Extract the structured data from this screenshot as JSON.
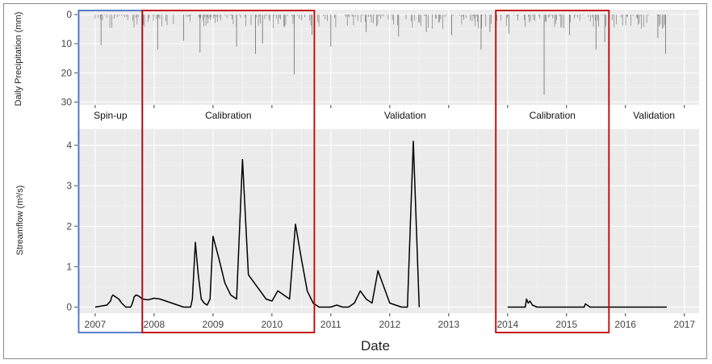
{
  "chart_data": [
    {
      "type": "bar",
      "panel": "precipitation",
      "ylabel": "Daily Precipitation (mm)",
      "y_reversed": true,
      "ylim": [
        0,
        31
      ],
      "yticks": [
        0,
        10,
        20,
        30
      ],
      "grid": true,
      "color": "#6b6b6b",
      "spikes": [
        {
          "x": 2007.1,
          "value": 10.5
        },
        {
          "x": 2008.06,
          "value": 12.0
        },
        {
          "x": 2008.5,
          "value": 9.0
        },
        {
          "x": 2008.78,
          "value": 13.0
        },
        {
          "x": 2009.4,
          "value": 11.0
        },
        {
          "x": 2009.72,
          "value": 13.5
        },
        {
          "x": 2009.84,
          "value": 10.0
        },
        {
          "x": 2010.38,
          "value": 20.5
        },
        {
          "x": 2010.68,
          "value": 7.0
        },
        {
          "x": 2011.0,
          "value": 11.0
        },
        {
          "x": 2011.6,
          "value": 6.0
        },
        {
          "x": 2012.15,
          "value": 7.5
        },
        {
          "x": 2012.62,
          "value": 6.0
        },
        {
          "x": 2013.05,
          "value": 7.0
        },
        {
          "x": 2013.55,
          "value": 12.0
        },
        {
          "x": 2013.7,
          "value": 6.0
        },
        {
          "x": 2014.02,
          "value": 6.5
        },
        {
          "x": 2014.62,
          "value": 27.5
        },
        {
          "x": 2015.05,
          "value": 7.0
        },
        {
          "x": 2015.5,
          "value": 12.0
        },
        {
          "x": 2015.65,
          "value": 9.5
        },
        {
          "x": 2016.55,
          "value": 8.0
        },
        {
          "x": 2016.68,
          "value": 13.5
        }
      ],
      "small_ranges": [
        [
          2007.0,
          2007.85
        ],
        [
          2007.9,
          2010.72
        ],
        [
          2010.78,
          2013.72
        ],
        [
          2013.8,
          2015.7
        ],
        [
          2015.72,
          2016.72
        ]
      ],
      "small_max": 5
    },
    {
      "type": "line",
      "panel": "streamflow",
      "ylabel": "Streamflow (m³/s)",
      "xlabel": "Date",
      "ylim": [
        -0.15,
        4.4
      ],
      "yticks": [
        0,
        1,
        2,
        3,
        4
      ],
      "xlim": [
        2006.7,
        2017.25
      ],
      "xticks": [
        2007,
        2008,
        2009,
        2010,
        2011,
        2012,
        2013,
        2014,
        2015,
        2016,
        2017
      ],
      "grid": true,
      "color": "#000000",
      "series": [
        {
          "x": [
            2007.0,
            2007.2,
            2007.26,
            2007.28,
            2007.3,
            2007.35,
            2007.4,
            2007.45,
            2007.52,
            2007.6,
            2007.62,
            2007.65,
            2007.66,
            2007.69,
            2007.73,
            2007.76,
            2007.8,
            2007.9,
            2008.0,
            2008.1,
            2008.2,
            2008.3,
            2008.4,
            2008.5,
            2008.6,
            2008.62,
            2008.65,
            2008.7,
            2008.75,
            2008.8,
            2008.85,
            2008.9,
            2008.95,
            2009.0,
            2009.1,
            2009.2,
            2009.3,
            2009.4,
            2009.5,
            2009.6,
            2009.7,
            2009.8,
            2009.9,
            2010.0,
            2010.1,
            2010.2,
            2010.3,
            2010.4,
            2010.5,
            2010.6,
            2010.7,
            2010.8,
            2010.9,
            2011.0,
            2011.1,
            2011.2,
            2011.3,
            2011.4,
            2011.5,
            2011.6,
            2011.7,
            2011.8,
            2011.9,
            2012.0,
            2012.1,
            2012.2,
            2012.3,
            2012.4,
            2012.5
          ],
          "y": [
            0.0,
            0.05,
            0.15,
            0.25,
            0.3,
            0.25,
            0.2,
            0.1,
            0.0,
            0.0,
            0.05,
            0.18,
            0.25,
            0.3,
            0.28,
            0.25,
            0.2,
            0.18,
            0.22,
            0.2,
            0.15,
            0.1,
            0.05,
            0.0,
            0.0,
            0.0,
            0.2,
            1.6,
            0.8,
            0.2,
            0.1,
            0.05,
            0.2,
            1.75,
            1.2,
            0.6,
            0.3,
            0.2,
            3.65,
            0.8,
            0.6,
            0.4,
            0.2,
            0.15,
            0.4,
            0.3,
            0.2,
            2.05,
            1.2,
            0.4,
            0.1,
            0.0,
            0.0,
            0.0,
            0.05,
            0.0,
            0.0,
            0.1,
            0.4,
            0.2,
            0.1,
            0.9,
            0.5,
            0.1,
            0.05,
            0.0,
            0.0,
            4.1,
            0.0
          ]
        },
        {
          "x": [
            2014.0,
            2014.3,
            2014.32,
            2014.35,
            2014.38,
            2014.42,
            2014.5,
            2015.0,
            2015.3,
            2015.32,
            2015.35,
            2015.4,
            2016.0,
            2016.7
          ],
          "y": [
            0.0,
            0.0,
            0.2,
            0.1,
            0.15,
            0.05,
            0.0,
            0.0,
            0.0,
            0.08,
            0.05,
            0.0,
            0.0,
            0.0
          ]
        }
      ]
    }
  ],
  "periods": [
    {
      "label": "Spin-up",
      "start": 2006.72,
      "end": 2007.8,
      "color": "#4472c4"
    },
    {
      "label": "Calibration",
      "start": 2007.8,
      "end": 2010.72,
      "color": "#c00000"
    },
    {
      "label": "Validation",
      "start": 2010.72,
      "end": 2013.8,
      "color": null
    },
    {
      "label": "Calibration",
      "start": 2013.8,
      "end": 2015.72,
      "color": "#c00000"
    },
    {
      "label": "Validation",
      "start": 2015.72,
      "end": 2017.25,
      "color": null
    }
  ]
}
